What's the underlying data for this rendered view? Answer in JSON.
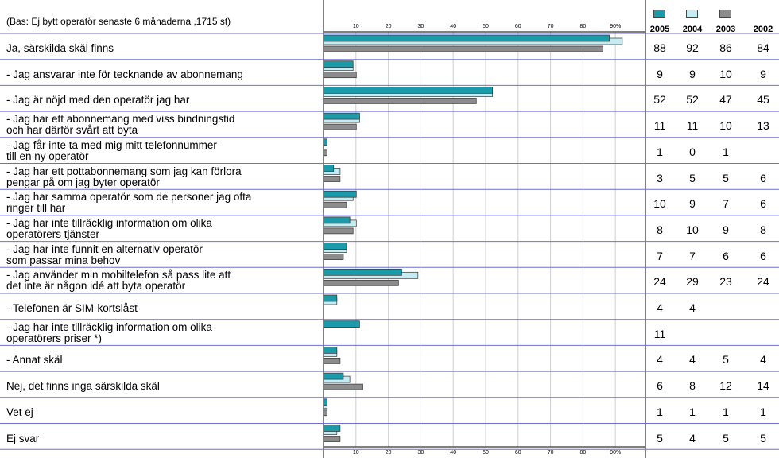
{
  "base_note": "(Bas: Ej bytt operatör senaste 6 månaderna ,1715 st)",
  "years": [
    "2005",
    "2004",
    "2003",
    "2002"
  ],
  "colors": {
    "2005": "#1b9aaa",
    "2004": "#c4ecf2",
    "2003": "#8c8c8c",
    "2002": "#ffffff",
    "row_line": "#6f6fd9",
    "grid": "#cfcfcf"
  },
  "chart_data": {
    "type": "bar",
    "orientation": "horizontal",
    "xlim": [
      0,
      100
    ],
    "xticks": [
      "10",
      "20",
      "30",
      "40",
      "50",
      "60",
      "70",
      "80",
      "90%"
    ],
    "categories": [
      "Ja, särskilda skäl finns",
      "-  Jag ansvarar inte för tecknande av abonnemang",
      "-  Jag är nöjd med den operatör jag har",
      "-  Jag har ett abonnemang med viss bindningstid\n   och har därför svårt att byta",
      "-  Jag får inte ta med mig mitt telefonnummer\n   till en ny operatör",
      "-  Jag har ett pottabonnemang som jag kan förlora\n   pengar på om jag byter operatör",
      "-  Jag har samma operatör som de personer jag ofta\n   ringer till har",
      "-  Jag har inte tillräcklig information om olika\n   operatörers tjänster",
      "-  Jag har inte funnit en alternativ operatör\n   som passar mina behov",
      "-  Jag använder min mobiltelefon så pass lite att\n   det inte är någon idé att byta operatör",
      "-  Telefonen är SIM-kortslåst",
      "-  Jag har inte tillräcklig information om olika\n   operatörers priser *)",
      "-  Annat skäl",
      "Nej, det finns inga särskilda skäl",
      "Vet ej",
      "Ej svar"
    ],
    "series": [
      {
        "name": "2005",
        "values": [
          88,
          9,
          52,
          11,
          1,
          3,
          10,
          8,
          7,
          24,
          4,
          11,
          4,
          6,
          1,
          5
        ]
      },
      {
        "name": "2004",
        "values": [
          92,
          9,
          52,
          11,
          0,
          5,
          9,
          10,
          7,
          29,
          4,
          null,
          4,
          8,
          1,
          4
        ]
      },
      {
        "name": "2003",
        "values": [
          86,
          10,
          47,
          10,
          1,
          5,
          7,
          9,
          6,
          23,
          null,
          null,
          5,
          12,
          1,
          5
        ]
      },
      {
        "name": "2002",
        "values": [
          84,
          9,
          45,
          13,
          null,
          6,
          6,
          8,
          6,
          24,
          null,
          null,
          4,
          14,
          1,
          5
        ]
      }
    ],
    "bars_drawn_for": [
      "2005",
      "2004",
      "2003"
    ]
  }
}
